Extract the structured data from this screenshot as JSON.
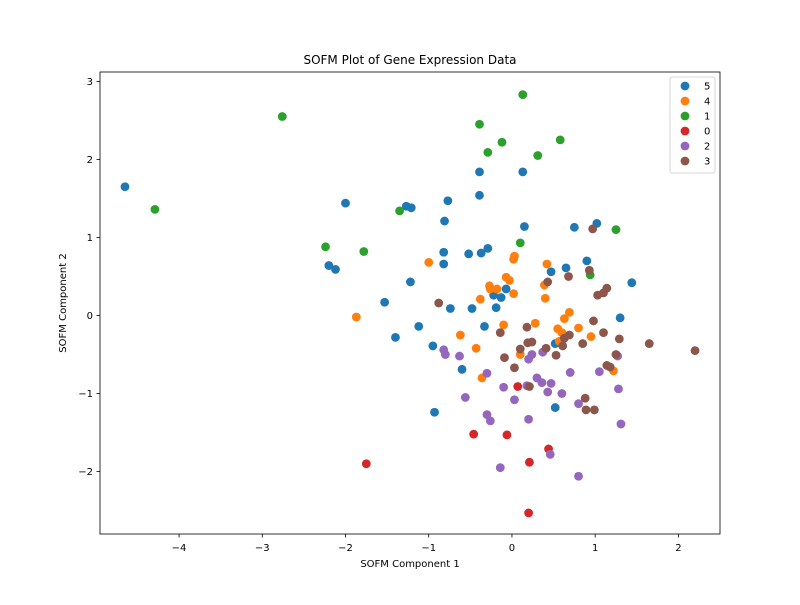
{
  "chart_data": {
    "type": "scatter",
    "title": "SOFM Plot of Gene Expression Data",
    "xlabel": "SOFM Component 1",
    "ylabel": "SOFM Component 2",
    "xlim": [
      -4.95,
      2.5
    ],
    "ylim": [
      -2.8,
      3.12
    ],
    "xticks": [
      -4,
      -3,
      -2,
      -1,
      0,
      1,
      2
    ],
    "yticks": [
      -2,
      -1,
      0,
      1,
      2,
      3
    ],
    "xtick_labels": [
      "−4",
      "−3",
      "−2",
      "−1",
      "0",
      "1",
      "2"
    ],
    "ytick_labels": [
      "−2",
      "−1",
      "0",
      "1",
      "2",
      "3"
    ],
    "grid": false,
    "legend_position": "top-right",
    "series": [
      {
        "name": "5",
        "color": "#1f77b4",
        "points": [
          [
            -4.65,
            1.65
          ],
          [
            -2.0,
            1.44
          ],
          [
            -0.39,
            1.84
          ],
          [
            0.13,
            1.84
          ],
          [
            -0.39,
            1.54
          ],
          [
            -0.77,
            1.47
          ],
          [
            -1.27,
            1.4
          ],
          [
            -1.21,
            1.38
          ],
          [
            -0.81,
            1.21
          ],
          [
            0.15,
            1.14
          ],
          [
            0.75,
            1.13
          ],
          [
            1.02,
            1.18
          ],
          [
            -0.82,
            0.81
          ],
          [
            -0.52,
            0.79
          ],
          [
            -0.37,
            0.8
          ],
          [
            -0.29,
            0.86
          ],
          [
            -0.82,
            0.66
          ],
          [
            -2.2,
            0.64
          ],
          [
            -2.12,
            0.59
          ],
          [
            0.47,
            0.56
          ],
          [
            0.65,
            0.61
          ],
          [
            0.9,
            0.7
          ],
          [
            -1.22,
            0.43
          ],
          [
            1.44,
            0.42
          ],
          [
            -1.53,
            0.17
          ],
          [
            -0.74,
            0.09
          ],
          [
            -0.48,
            0.09
          ],
          [
            -0.22,
            0.26
          ],
          [
            -0.13,
            0.23
          ],
          [
            -0.07,
            0.34
          ],
          [
            -0.19,
            0.1
          ],
          [
            -1.12,
            -0.14
          ],
          [
            -0.33,
            -0.14
          ],
          [
            -1.4,
            -0.28
          ],
          [
            1.3,
            -0.03
          ],
          [
            0.52,
            -0.36
          ],
          [
            -0.95,
            -0.39
          ],
          [
            -0.6,
            -0.69
          ],
          [
            -0.93,
            -1.24
          ],
          [
            0.52,
            -1.18
          ]
        ]
      },
      {
        "name": "4",
        "color": "#ff7f0e",
        "points": [
          [
            -1.0,
            0.68
          ],
          [
            0.02,
            0.72
          ],
          [
            0.03,
            0.76
          ],
          [
            -0.07,
            0.49
          ],
          [
            -0.03,
            0.45
          ],
          [
            0.42,
            0.66
          ],
          [
            -0.26,
            0.34
          ],
          [
            -0.27,
            0.38
          ],
          [
            -0.18,
            0.34
          ],
          [
            0.39,
            0.39
          ],
          [
            -0.38,
            0.21
          ],
          [
            0.4,
            0.22
          ],
          [
            0.02,
            0.28
          ],
          [
            -1.87,
            -0.02
          ],
          [
            0.69,
            0.04
          ],
          [
            0.63,
            -0.04
          ],
          [
            0.28,
            -0.1
          ],
          [
            -0.1,
            -0.12
          ],
          [
            0.55,
            -0.17
          ],
          [
            0.8,
            -0.16
          ],
          [
            -0.62,
            -0.25
          ],
          [
            0.6,
            -0.22
          ],
          [
            0.95,
            -0.27
          ],
          [
            0.57,
            -0.33
          ],
          [
            0.1,
            -0.5
          ],
          [
            -0.43,
            -0.42
          ],
          [
            1.22,
            -0.71
          ],
          [
            -0.36,
            -0.8
          ]
        ]
      },
      {
        "name": "1",
        "color": "#2ca02c",
        "points": [
          [
            -2.76,
            2.55
          ],
          [
            0.13,
            2.83
          ],
          [
            -0.39,
            2.45
          ],
          [
            -0.12,
            2.22
          ],
          [
            0.58,
            2.25
          ],
          [
            -0.29,
            2.09
          ],
          [
            0.31,
            2.05
          ],
          [
            -4.29,
            1.36
          ],
          [
            -1.35,
            1.34
          ],
          [
            1.25,
            1.1
          ],
          [
            0.1,
            0.93
          ],
          [
            -2.24,
            0.88
          ],
          [
            -1.78,
            0.82
          ],
          [
            0.94,
            0.52
          ]
        ]
      },
      {
        "name": "0",
        "color": "#d62728",
        "points": [
          [
            -1.75,
            -1.9
          ],
          [
            0.07,
            -0.91
          ],
          [
            -0.46,
            -1.52
          ],
          [
            -0.06,
            -1.53
          ],
          [
            0.44,
            -1.71
          ],
          [
            0.21,
            -1.88
          ],
          [
            0.2,
            -2.53
          ]
        ]
      },
      {
        "name": "2",
        "color": "#9467bd",
        "points": [
          [
            -0.82,
            -0.44
          ],
          [
            -0.8,
            -0.5
          ],
          [
            -0.63,
            -0.52
          ],
          [
            0.2,
            -0.56
          ],
          [
            0.24,
            -0.5
          ],
          [
            0.37,
            -0.47
          ],
          [
            -0.3,
            -0.74
          ],
          [
            0.7,
            -0.73
          ],
          [
            1.27,
            -0.52
          ],
          [
            1.05,
            -0.72
          ],
          [
            -0.1,
            -0.92
          ],
          [
            0.3,
            -0.8
          ],
          [
            0.36,
            -0.86
          ],
          [
            0.47,
            -0.87
          ],
          [
            0.18,
            -0.9
          ],
          [
            0.43,
            -0.98
          ],
          [
            0.6,
            -1.0
          ],
          [
            1.28,
            -0.94
          ],
          [
            -0.56,
            -1.05
          ],
          [
            0.03,
            -1.08
          ],
          [
            0.8,
            -1.13
          ],
          [
            -0.3,
            -1.27
          ],
          [
            -0.26,
            -1.35
          ],
          [
            0.2,
            -1.33
          ],
          [
            1.31,
            -1.39
          ],
          [
            0.46,
            -1.78
          ],
          [
            -0.14,
            -1.95
          ],
          [
            0.8,
            -2.06
          ]
        ]
      },
      {
        "name": "3",
        "color": "#8c564b",
        "points": [
          [
            0.97,
            1.11
          ],
          [
            0.93,
            0.58
          ],
          [
            0.68,
            0.5
          ],
          [
            0.43,
            0.43
          ],
          [
            1.14,
            0.35
          ],
          [
            1.03,
            0.26
          ],
          [
            1.1,
            0.29
          ],
          [
            -0.88,
            0.16
          ],
          [
            0.18,
            -0.15
          ],
          [
            0.98,
            -0.07
          ],
          [
            -0.14,
            -0.22
          ],
          [
            1.1,
            -0.22
          ],
          [
            0.69,
            -0.25
          ],
          [
            0.63,
            -0.29
          ],
          [
            1.29,
            -0.3
          ],
          [
            0.24,
            -0.34
          ],
          [
            0.19,
            -0.35
          ],
          [
            0.85,
            -0.36
          ],
          [
            1.65,
            -0.36
          ],
          [
            0.1,
            -0.43
          ],
          [
            0.61,
            -0.39
          ],
          [
            0.41,
            -0.42
          ],
          [
            0.53,
            -0.51
          ],
          [
            1.25,
            -0.5
          ],
          [
            -0.09,
            -0.54
          ],
          [
            0.03,
            -0.67
          ],
          [
            1.14,
            -0.64
          ],
          [
            1.18,
            -0.66
          ],
          [
            2.2,
            -0.45
          ],
          [
            0.21,
            -0.91
          ],
          [
            0.88,
            -1.06
          ],
          [
            0.89,
            -1.21
          ],
          [
            0.99,
            -1.21
          ]
        ]
      }
    ]
  }
}
